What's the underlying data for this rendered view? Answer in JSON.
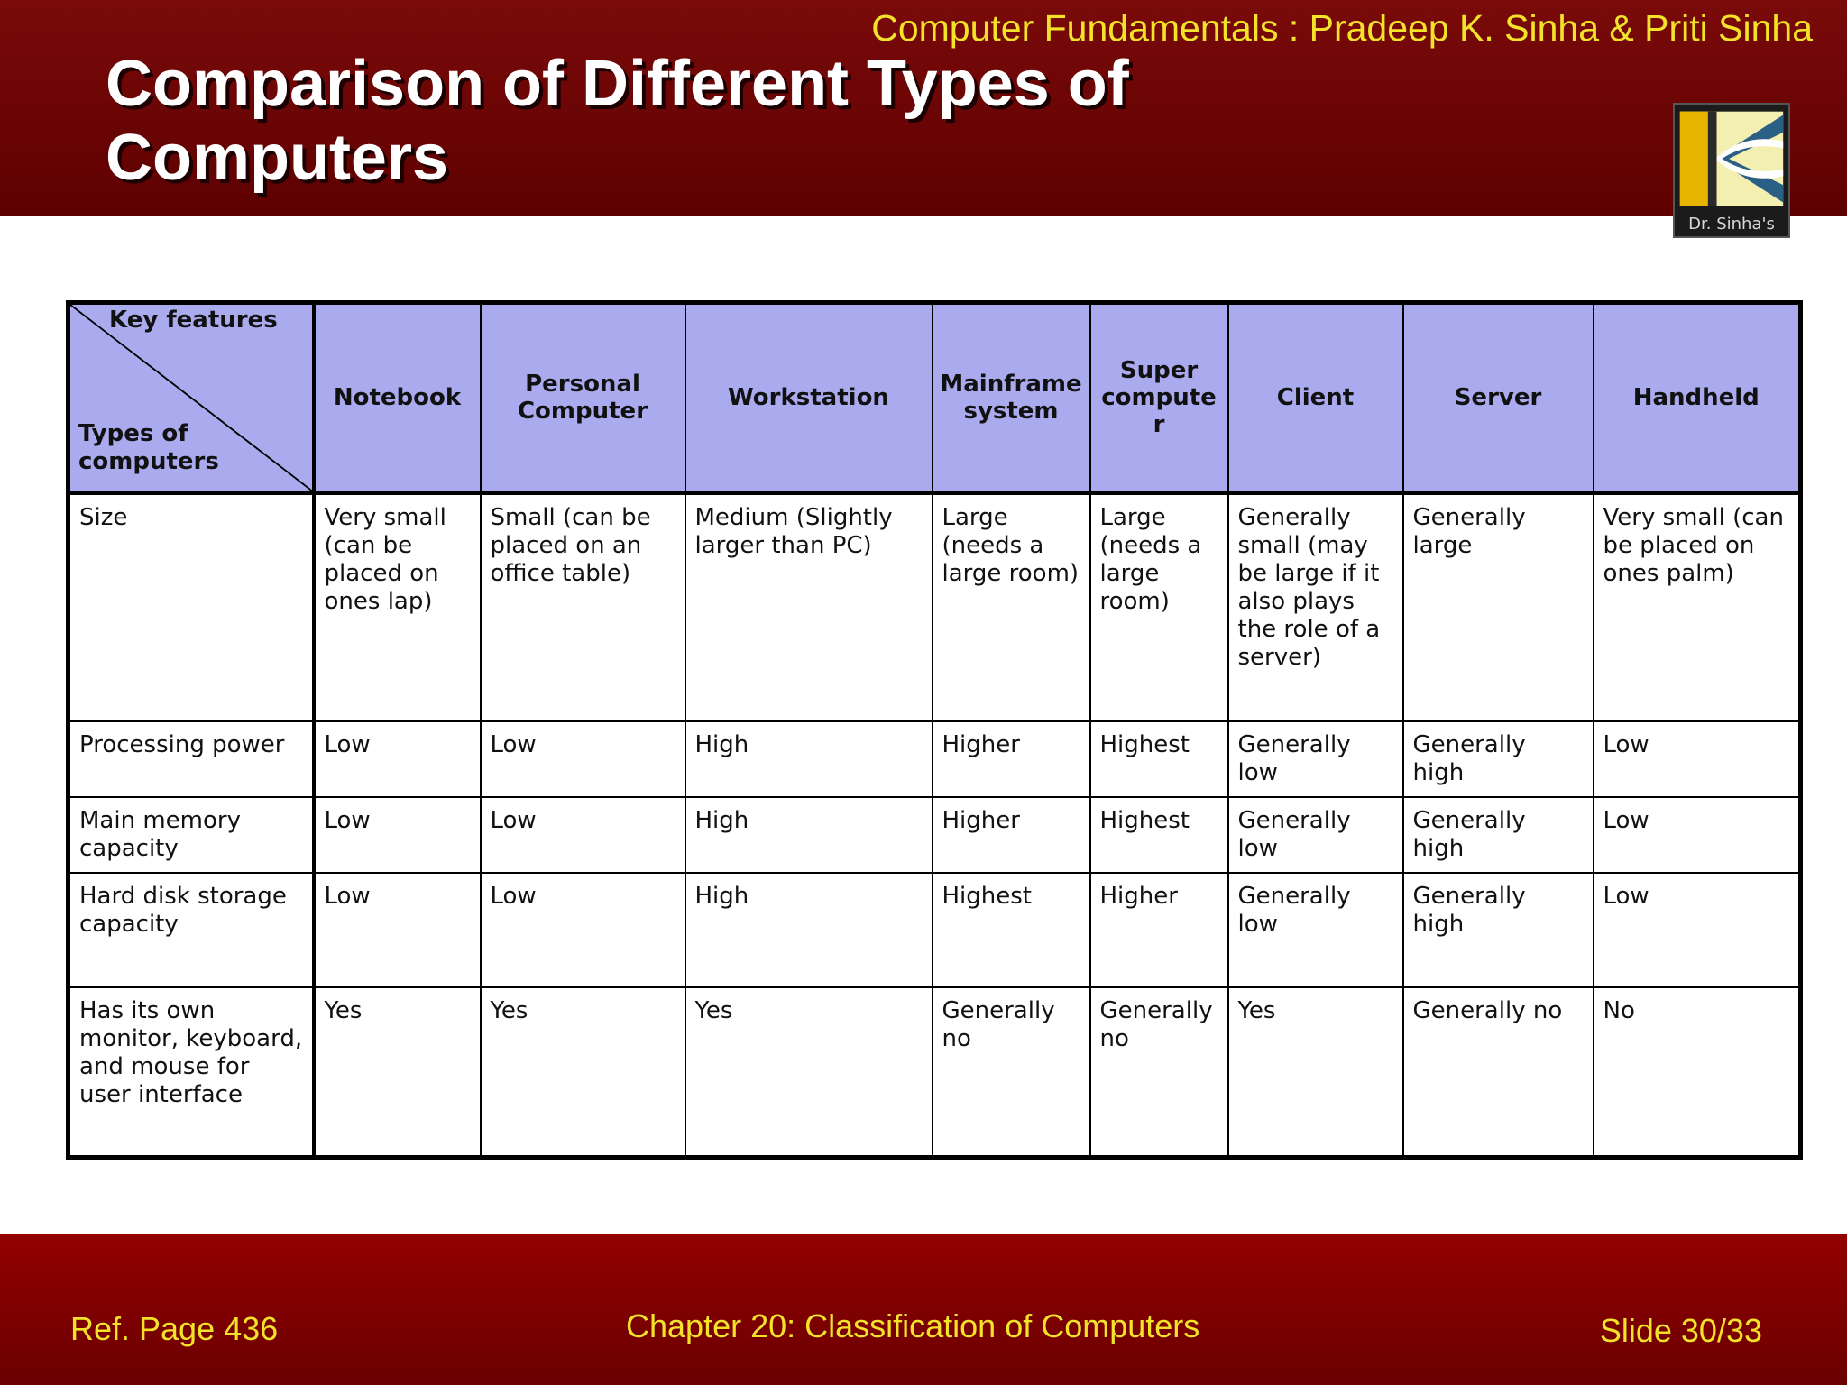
{
  "header": {
    "book_credit": "Computer Fundamentals : Pradeep K. Sinha & Priti Sinha",
    "title": "Comparison of Different Types of Computers",
    "logo_caption": "Dr. Sinha's"
  },
  "table": {
    "corner_top": "Key features",
    "corner_bottom": "Types of computers",
    "columns": [
      "Notebook",
      "Personal Computer",
      "Workstation",
      "Mainframe system",
      "Super compute r",
      "Client",
      "Server",
      "Handheld"
    ],
    "rows": [
      {
        "label": "Size",
        "cells": [
          "Very small (can be placed on ones lap)",
          "Small (can be placed on an office table)",
          "Medium (Slightly larger than PC)",
          "Large (needs a large room)",
          "Large (needs a large room)",
          "Generally small (may be large if it also plays the role of a server)",
          "Generally large",
          "Very small (can be placed on ones palm)"
        ]
      },
      {
        "label": "Processing power",
        "cells": [
          "Low",
          "Low",
          "High",
          "Higher",
          "Highest",
          "Generally low",
          "Generally high",
          "Low"
        ]
      },
      {
        "label": "Main memory capacity",
        "cells": [
          "Low",
          "Low",
          "High",
          "Higher",
          "Highest",
          "Generally low",
          "Generally high",
          "Low"
        ]
      },
      {
        "label": "Hard disk storage capacity",
        "cells": [
          "Low",
          "Low",
          "High",
          "Highest",
          "Higher",
          "Generally low",
          "Generally high",
          "Low"
        ]
      },
      {
        "label": "Has its own monitor, keyboard, and mouse  for user interface",
        "cells": [
          "Yes",
          "Yes",
          "Yes",
          "Generally no",
          "Generally no",
          "Yes",
          "Generally no",
          "No"
        ]
      }
    ]
  },
  "footer": {
    "ref": "Ref. Page  436",
    "chapter": "Chapter 20: Classification of Computers",
    "slide": "Slide 30/33"
  },
  "colors": {
    "header_band": "#6a0000",
    "footer_band": "#8a0000",
    "accent_text": "#f3e22a",
    "table_header": "#aaaaee"
  }
}
